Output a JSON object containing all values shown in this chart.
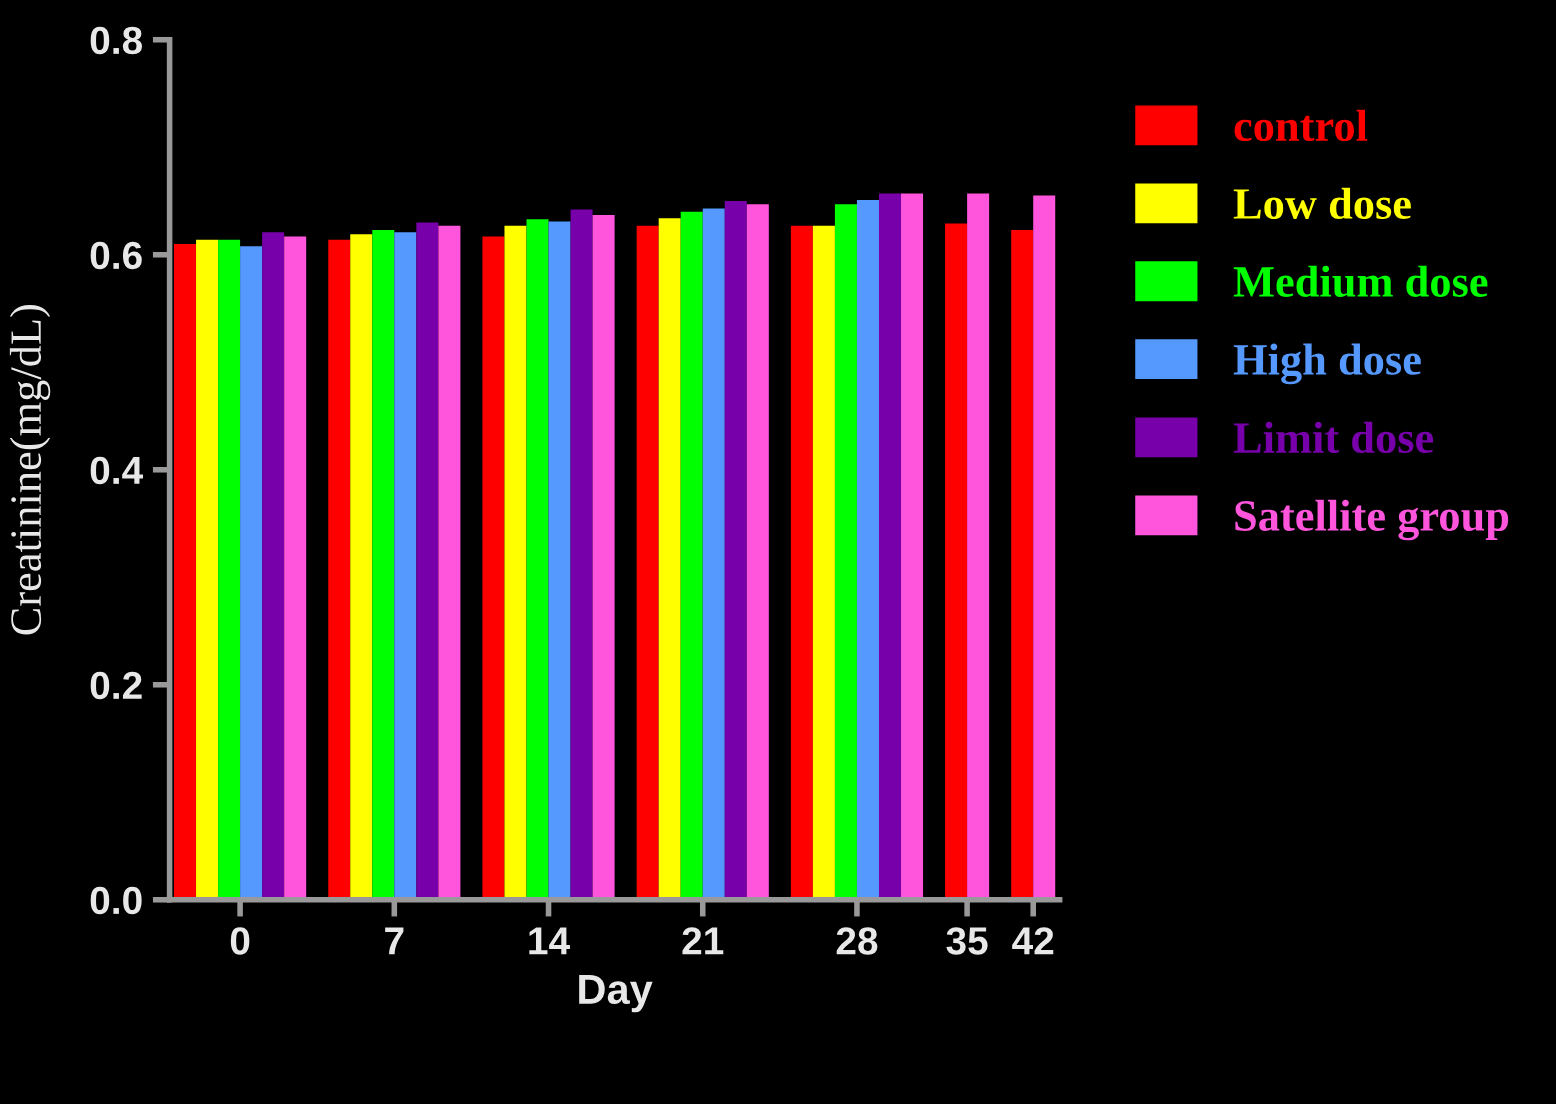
{
  "chart_data": {
    "type": "bar",
    "xlabel": "Day",
    "ylabel": "Creatinine(mg/dL)",
    "categories": [
      "0",
      "7",
      "14",
      "21",
      "28",
      "35",
      "42"
    ],
    "series": [
      {
        "name": "control",
        "color": "#ff0000",
        "values": [
          0.61,
          0.614,
          0.617,
          0.627,
          0.627,
          0.629,
          0.623
        ]
      },
      {
        "name": "Low dose",
        "color": "#ffff00",
        "values": [
          0.614,
          0.619,
          0.627,
          0.634,
          0.627,
          null,
          null
        ]
      },
      {
        "name": "Medium dose",
        "color": "#00ff00",
        "values": [
          0.614,
          0.623,
          0.633,
          0.64,
          0.647,
          null,
          null
        ]
      },
      {
        "name": "High dose",
        "color": "#5599ff",
        "values": [
          0.608,
          0.621,
          0.631,
          0.643,
          0.651,
          null,
          null
        ]
      },
      {
        "name": "Limit dose",
        "color": "#7700aa",
        "values": [
          0.621,
          0.63,
          0.642,
          0.65,
          0.657,
          null,
          null
        ]
      },
      {
        "name": "Satellite group",
        "color": "#ff55dd",
        "values": [
          0.617,
          0.627,
          0.637,
          0.647,
          0.657,
          0.657,
          0.655
        ]
      }
    ],
    "ylim": [
      0,
      0.8
    ],
    "yticks": [
      {
        "value": 0,
        "label": "0.0"
      },
      0.2,
      0.4,
      0.6,
      0.8
    ],
    "grid": false,
    "legend": "right"
  }
}
